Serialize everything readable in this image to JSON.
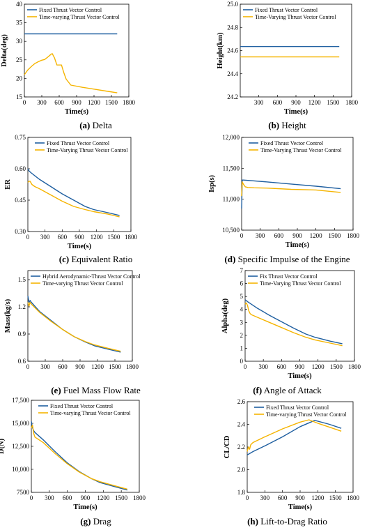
{
  "colors": {
    "fixed": "#1f5fa0",
    "varying": "#f5b400"
  },
  "captions": [
    {
      "letter": "(a)",
      "text": "Delta"
    },
    {
      "letter": "(b)",
      "text": "Height"
    },
    {
      "letter": "(c)",
      "text": "Equivalent Ratio"
    },
    {
      "letter": "(d)",
      "text": "Specific Impulse of the Engine"
    },
    {
      "letter": "(e)",
      "text": "Fuel Mass Flow Rate"
    },
    {
      "letter": "(f)",
      "text": "Angle of Attack"
    },
    {
      "letter": "(g)",
      "text": "Drag"
    },
    {
      "letter": "(h)",
      "text": "Lift-to-Drag Ratio"
    }
  ],
  "chart_data": [
    {
      "type": "line",
      "xlabel": "Time(s)",
      "ylabel": "Delta(deg)",
      "xlim": [
        0,
        1800
      ],
      "ylim": [
        15,
        40
      ],
      "xticks": [
        "0",
        "300",
        "600",
        "900",
        "1200",
        "1500",
        "1800"
      ],
      "yticks": [
        "15",
        "20",
        "25",
        "30",
        "35",
        "40"
      ],
      "legend_position": "top-left",
      "grid": false,
      "series": [
        {
          "name": "Fixed Thrust Vector Control",
          "color": "fixed",
          "x": [
            0,
            1600
          ],
          "y": [
            32,
            32
          ]
        },
        {
          "name": "Time-varying Thrust Vector Control",
          "color": "varying",
          "x": [
            0,
            60,
            120,
            180,
            240,
            300,
            350,
            400,
            460,
            480,
            520,
            560,
            600,
            640,
            680,
            720,
            800,
            1000,
            1200,
            1400,
            1600
          ],
          "y": [
            21,
            22.3,
            23.2,
            24,
            24.5,
            24.9,
            25.1,
            25.7,
            26.5,
            26.7,
            25.5,
            23.6,
            23.6,
            23.6,
            21.5,
            19.8,
            18.2,
            17.6,
            17.1,
            16.6,
            16.1
          ]
        }
      ]
    },
    {
      "type": "line",
      "xlabel": "Time(s)",
      "ylabel": "Height(km)",
      "xlim": [
        0,
        1800
      ],
      "ylim": [
        24.2,
        25.0
      ],
      "xticks": [
        "300",
        "600",
        "900",
        "1200",
        "1500",
        "1800"
      ],
      "xtick_values": [
        300,
        600,
        900,
        1200,
        1500,
        1800
      ],
      "yticks": [
        "24.2",
        "24.4",
        "24.6",
        "24.8",
        "25.0"
      ],
      "legend_position": "top-left",
      "grid": false,
      "series": [
        {
          "name": "Fixed Thrust Vector Control",
          "color": "fixed",
          "x": [
            0,
            1600
          ],
          "y": [
            24.635,
            24.635
          ]
        },
        {
          "name": "Time-Varying Thrust Vector Control",
          "color": "varying",
          "x": [
            0,
            1600
          ],
          "y": [
            24.545,
            24.545
          ]
        }
      ]
    },
    {
      "type": "line",
      "xlabel": "Time(s)",
      "ylabel": "ER",
      "xlim": [
        0,
        1800
      ],
      "ylim": [
        0.3,
        0.75
      ],
      "xticks": [
        "0",
        "300",
        "600",
        "900",
        "1200",
        "1500",
        "1800"
      ],
      "yticks": [
        "0.30",
        "0.45",
        "0.60",
        "0.75"
      ],
      "legend_position": "top-right",
      "grid": false,
      "series": [
        {
          "name": "Fixed Thrust Vector Control",
          "color": "fixed",
          "x": [
            0,
            20,
            60,
            200,
            400,
            600,
            800,
            1000,
            1150,
            1400,
            1600
          ],
          "y": [
            0.6,
            0.59,
            0.58,
            0.55,
            0.515,
            0.48,
            0.45,
            0.42,
            0.405,
            0.39,
            0.377
          ]
        },
        {
          "name": "Time-Varying Thrust Vector Control",
          "color": "varying",
          "x": [
            0,
            20,
            40,
            70,
            120,
            200,
            400,
            600,
            800,
            1000,
            1150,
            1400,
            1600
          ],
          "y": [
            0.535,
            0.54,
            0.54,
            0.525,
            0.515,
            0.505,
            0.475,
            0.445,
            0.42,
            0.405,
            0.395,
            0.383,
            0.37
          ]
        }
      ]
    },
    {
      "type": "line",
      "xlabel": "Time(s)",
      "ylabel": "Isp(s)",
      "xlim": [
        0,
        1800
      ],
      "ylim": [
        10500,
        12000
      ],
      "xticks": [
        "0",
        "300",
        "600",
        "900",
        "1200",
        "1500",
        "1800"
      ],
      "yticks": [
        "10,500",
        "11,000",
        "11,500",
        "12,000"
      ],
      "legend_position": "top-right",
      "grid": false,
      "series": [
        {
          "name": "Fixed Thrust Vector Control",
          "color": "fixed",
          "x": [
            0,
            10,
            30,
            400,
            800,
            1200,
            1600
          ],
          "y": [
            10850,
            11310,
            11310,
            11280,
            11245,
            11210,
            11170
          ]
        },
        {
          "name": "Time-Varying Thrust Vector Control",
          "color": "varying",
          "x": [
            0,
            10,
            30,
            60,
            100,
            200,
            400,
            800,
            1200,
            1600
          ],
          "y": [
            11050,
            11280,
            11240,
            11200,
            11190,
            11185,
            11180,
            11160,
            11150,
            11110
          ]
        }
      ]
    },
    {
      "type": "line",
      "xlabel": "",
      "ylabel": "Mass(kg/s)",
      "xlim": [
        0,
        1800
      ],
      "ylim": [
        0.6,
        1.6
      ],
      "xticks": [
        "0",
        "300",
        "600",
        "900",
        "1200",
        "1500",
        "1800"
      ],
      "yticks": [
        "0.6",
        "0.9",
        "1.2",
        "1.5"
      ],
      "legend_position": "top-left",
      "grid": false,
      "series": [
        {
          "name": "Hybrid Aerodynamic-Thrust Vector Control",
          "color": "fixed",
          "x": [
            0,
            20,
            40,
            60,
            200,
            400,
            600,
            800,
            1000,
            1150,
            1400,
            1600
          ],
          "y": [
            1.32,
            1.25,
            1.27,
            1.25,
            1.15,
            1.05,
            0.95,
            0.87,
            0.81,
            0.77,
            0.73,
            0.7
          ]
        },
        {
          "name": "Time-varying Thrust Vector Control",
          "color": "varying",
          "x": [
            0,
            20,
            40,
            60,
            200,
            400,
            600,
            800,
            1000,
            1150,
            1400,
            1600
          ],
          "y": [
            1.25,
            1.21,
            1.25,
            1.23,
            1.14,
            1.04,
            0.95,
            0.87,
            0.815,
            0.78,
            0.74,
            0.71
          ]
        }
      ]
    },
    {
      "type": "line",
      "xlabel": "Time(s)",
      "ylabel": "Alpha(deg)",
      "xlim": [
        0,
        1800
      ],
      "ylim": [
        0,
        7
      ],
      "xticks": [
        "0",
        "300",
        "600",
        "900",
        "1200",
        "1500",
        "1800"
      ],
      "yticks": [
        "0",
        "1",
        "2",
        "3",
        "4",
        "5",
        "6",
        "7"
      ],
      "legend_position": "top-left",
      "grid": false,
      "series": [
        {
          "name": "Fix Thrust Vector Control",
          "color": "fixed",
          "x": [
            0,
            40,
            200,
            400,
            600,
            800,
            1000,
            1150,
            1400,
            1600
          ],
          "y": [
            4.75,
            4.6,
            4.1,
            3.55,
            3.05,
            2.55,
            2.1,
            1.85,
            1.55,
            1.35
          ]
        },
        {
          "name": "Time-Varying Thrust Vector Control",
          "color": "varying",
          "x": [
            0,
            20,
            40,
            60,
            80,
            100,
            200,
            400,
            600,
            800,
            1000,
            1150,
            1400,
            1600
          ],
          "y": [
            4.4,
            4.5,
            4.3,
            3.9,
            3.7,
            3.6,
            3.4,
            3.0,
            2.6,
            2.2,
            1.85,
            1.65,
            1.4,
            1.2
          ]
        }
      ]
    },
    {
      "type": "line",
      "xlabel": "Time(s)",
      "ylabel": "D(N)",
      "xlim": [
        0,
        1800
      ],
      "ylim": [
        7500,
        17500
      ],
      "xticks": [
        "0",
        "300",
        "600",
        "900",
        "1200",
        "1500",
        "1800"
      ],
      "yticks": [
        "7500",
        "10,000",
        "12,500",
        "15,000",
        "17,500"
      ],
      "legend_position": "top-right",
      "grid": false,
      "series": [
        {
          "name": "Fixed Thrust Vector Control",
          "color": "fixed",
          "x": [
            0,
            20,
            40,
            60,
            200,
            400,
            600,
            800,
            1000,
            1150,
            1400,
            1600
          ],
          "y": [
            15200,
            14500,
            14200,
            14000,
            13200,
            11900,
            10700,
            9750,
            9000,
            8550,
            8100,
            7750
          ]
        },
        {
          "name": "Time-varying Thrust Vector Control",
          "color": "varying",
          "x": [
            0,
            20,
            40,
            60,
            200,
            400,
            600,
            800,
            1000,
            1150,
            1400,
            1600
          ],
          "y": [
            14500,
            14800,
            13900,
            13500,
            12900,
            11700,
            10600,
            9700,
            9000,
            8650,
            8200,
            7850
          ]
        }
      ]
    },
    {
      "type": "line",
      "xlabel": "Time(s)",
      "ylabel": "CL/CD",
      "xlim": [
        0,
        1800
      ],
      "ylim": [
        1.8,
        2.6
      ],
      "xticks": [
        "0",
        "300",
        "600",
        "900",
        "1200",
        "1500",
        "1800"
      ],
      "yticks": [
        "1.8",
        "2.0",
        "2.2",
        "2.4",
        "2.6"
      ],
      "legend_position": "top-right",
      "grid": false,
      "series": [
        {
          "name": "Fixed Thrust Vector Control",
          "color": "fixed",
          "x": [
            0,
            100,
            300,
            600,
            900,
            1150,
            1400,
            1600
          ],
          "y": [
            2.13,
            2.16,
            2.21,
            2.29,
            2.38,
            2.435,
            2.4,
            2.365
          ]
        },
        {
          "name": "Time-varying Thrust Vector Control",
          "color": "varying",
          "x": [
            0,
            20,
            40,
            60,
            100,
            300,
            600,
            900,
            1050,
            1200,
            1400,
            1600
          ],
          "y": [
            2.16,
            2.2,
            2.18,
            2.22,
            2.24,
            2.29,
            2.36,
            2.42,
            2.44,
            2.41,
            2.375,
            2.34
          ]
        }
      ]
    }
  ]
}
